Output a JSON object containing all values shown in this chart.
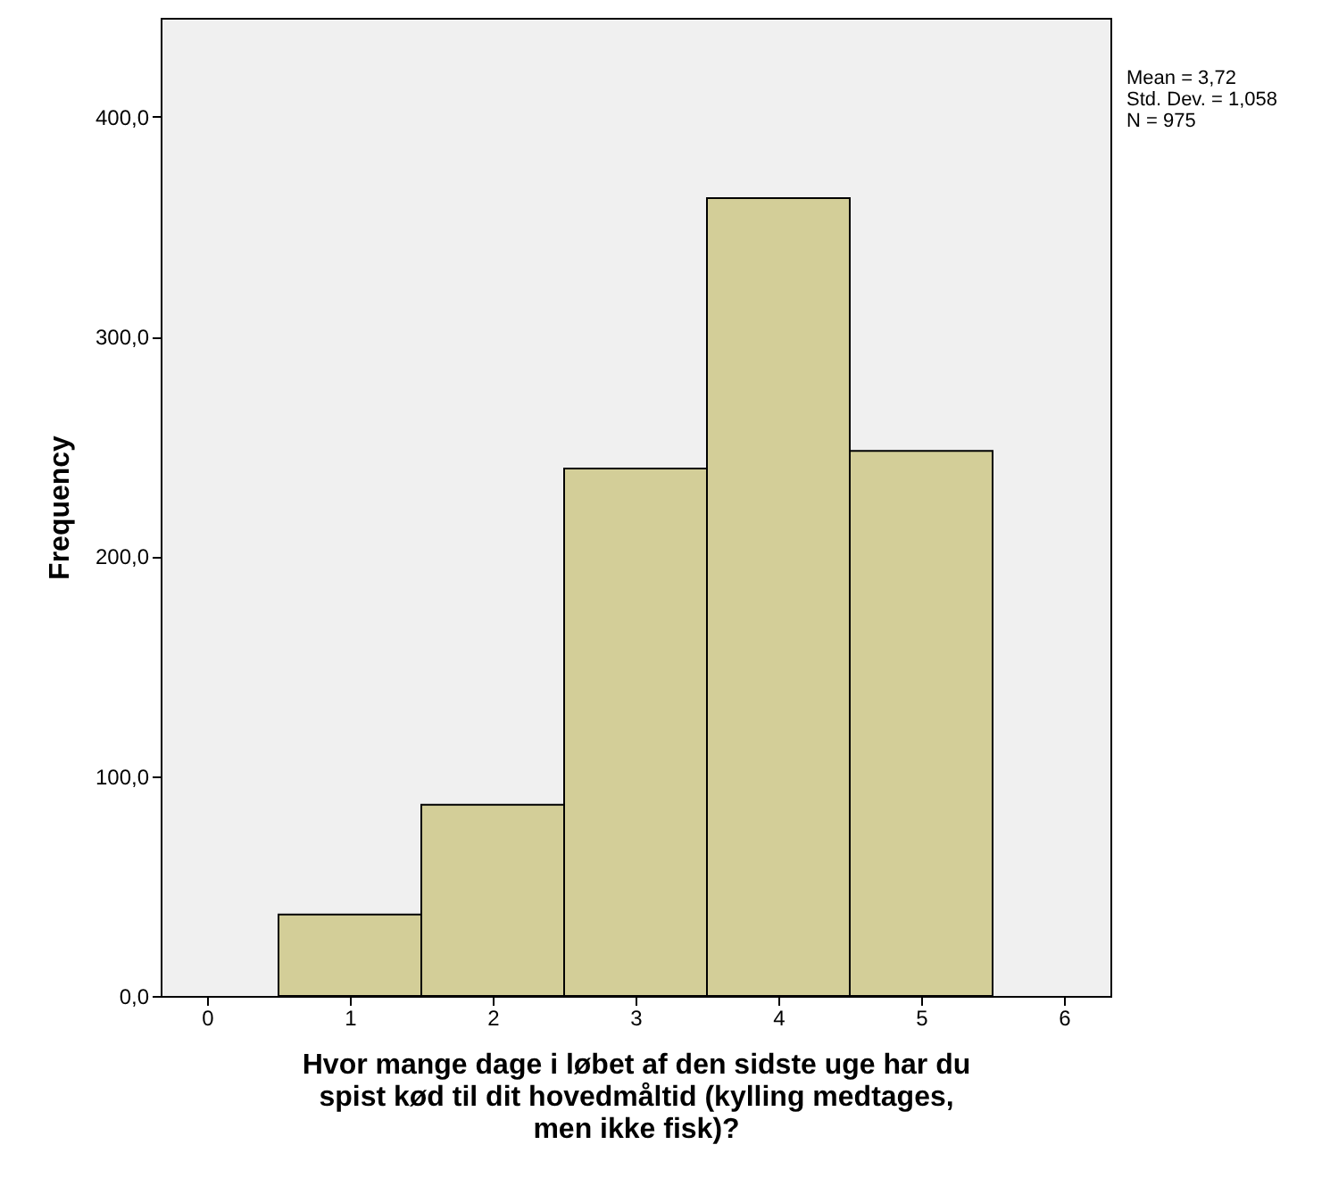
{
  "chart_data": {
    "type": "histogram",
    "xlabel": "Hvor mange dage i løbet af den sidste uge har du spist kød til dit hovedmåltid (kylling medtages, men ikke fisk)?",
    "ylabel": "Frequency",
    "bins": [
      0.5,
      1.5,
      2.5,
      3.5,
      4.5,
      5.5
    ],
    "values": [
      37,
      87,
      240,
      363,
      248
    ],
    "color": "#d3ce98",
    "xlim": [
      -0.325,
      6.325
    ],
    "xticks": [
      0,
      1,
      2,
      3,
      4,
      5,
      6
    ],
    "ylim": [
      0,
      445
    ],
    "yticks": [
      {
        "value": 0,
        "label": "0,0"
      },
      {
        "value": 100,
        "label": "100,0"
      },
      {
        "value": 200,
        "label": "200,0"
      },
      {
        "value": 300,
        "label": "300,0"
      },
      {
        "value": 400,
        "label": "400,0"
      }
    ],
    "grid": false,
    "annotations": [
      "Mean = 3,72",
      "Std. Dev. = 1,058",
      "N = 975"
    ]
  }
}
